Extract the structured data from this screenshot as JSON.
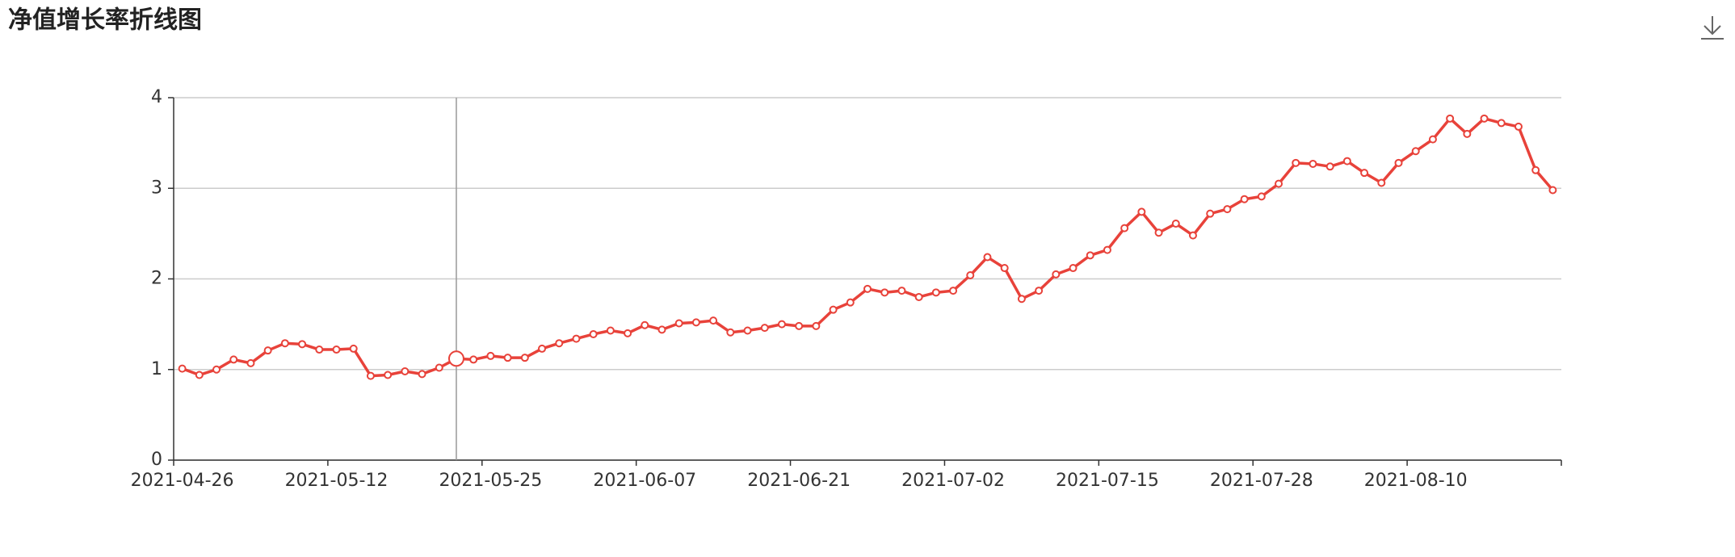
{
  "chart_data": {
    "type": "line",
    "title": "净值增长率折线图",
    "categories": [
      "2021-04-26",
      null,
      null,
      null,
      null,
      null,
      null,
      null,
      null,
      "2021-05-12",
      null,
      null,
      null,
      null,
      null,
      null,
      null,
      null,
      "2021-05-25",
      null,
      null,
      null,
      null,
      null,
      null,
      null,
      null,
      "2021-06-07",
      null,
      null,
      null,
      null,
      null,
      null,
      null,
      null,
      "2021-06-21",
      null,
      null,
      null,
      null,
      null,
      null,
      null,
      null,
      "2021-07-02",
      null,
      null,
      null,
      null,
      null,
      null,
      null,
      null,
      "2021-07-15",
      null,
      null,
      null,
      null,
      null,
      null,
      null,
      null,
      "2021-07-28",
      null,
      null,
      null,
      null,
      null,
      null,
      null,
      null,
      "2021-08-10",
      null,
      null,
      null,
      null,
      null,
      null,
      null,
      null
    ],
    "series": [
      {
        "color": "#e8423a",
        "values": [
          1.01,
          0.94,
          1.0,
          1.11,
          1.07,
          1.21,
          1.29,
          1.28,
          1.22,
          1.22,
          1.23,
          0.93,
          0.94,
          0.98,
          0.95,
          1.02,
          1.12,
          1.11,
          1.15,
          1.13,
          1.13,
          1.23,
          1.29,
          1.34,
          1.39,
          1.43,
          1.4,
          1.49,
          1.44,
          1.51,
          1.52,
          1.54,
          1.41,
          1.43,
          1.46,
          1.5,
          1.48,
          1.48,
          1.66,
          1.74,
          1.89,
          1.85,
          1.87,
          1.8,
          1.85,
          1.87,
          2.04,
          2.24,
          2.12,
          1.78,
          1.87,
          2.05,
          2.12,
          2.26,
          2.32,
          2.56,
          2.74,
          2.51,
          2.61,
          2.48,
          2.72,
          2.77,
          2.88,
          2.91,
          3.05,
          3.28,
          3.27,
          3.24,
          3.3,
          3.17,
          3.06,
          3.28,
          3.41,
          3.54,
          3.77,
          3.6,
          3.77,
          3.72,
          3.68,
          3.2,
          2.98
        ]
      }
    ],
    "ylim": [
      0,
      4
    ],
    "yticks": [
      0,
      1,
      2,
      3,
      4
    ],
    "grid": true
  }
}
